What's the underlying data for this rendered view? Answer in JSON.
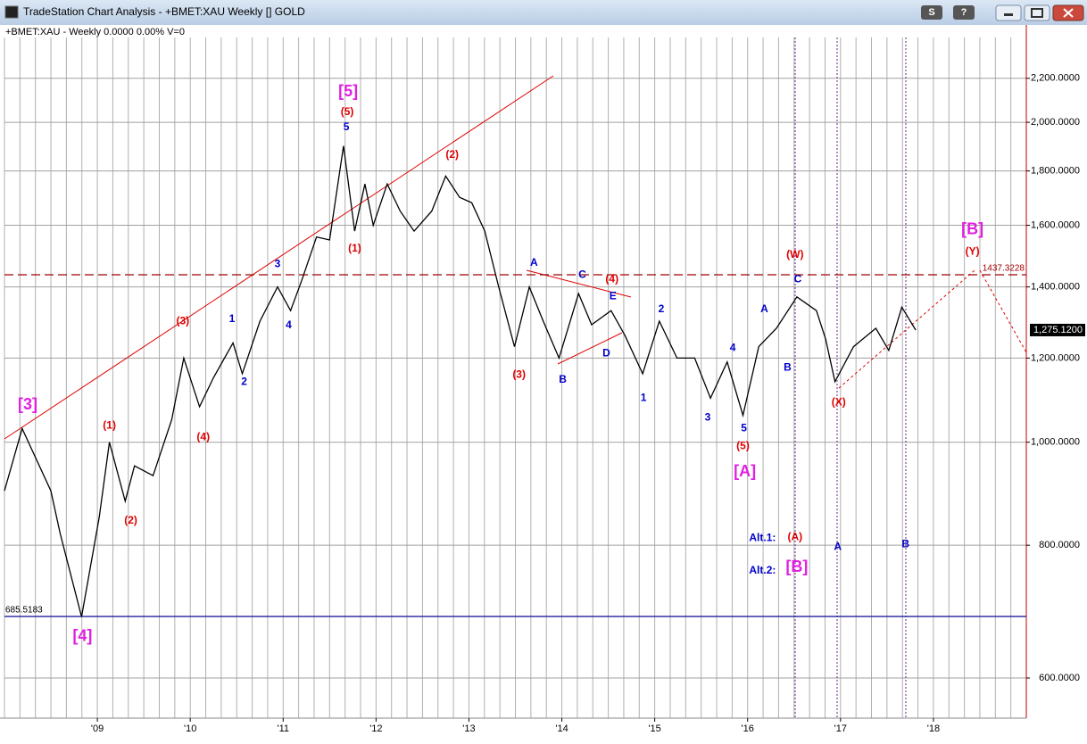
{
  "window": {
    "title": "TradeStation Chart Analysis - +BMET:XAU Weekly [] GOLD",
    "controls": [
      "S",
      "?"
    ]
  },
  "chart_data": {
    "type": "line",
    "header": "+BMET:XAU - Weekly  0.0000  0.00%  V=0",
    "log_scale": true,
    "grid": true,
    "xlim": [
      2008,
      2019
    ],
    "ylim": [
      550,
      2460
    ],
    "xticks": [
      {
        "value": 2009,
        "label": "'09"
      },
      {
        "value": 2010,
        "label": "'10"
      },
      {
        "value": 2011,
        "label": "'11"
      },
      {
        "value": 2012,
        "label": "'12"
      },
      {
        "value": 2013,
        "label": "'13"
      },
      {
        "value": 2014,
        "label": "'14"
      },
      {
        "value": 2015,
        "label": "'15"
      },
      {
        "value": 2016,
        "label": "'16"
      },
      {
        "value": 2017,
        "label": "'17"
      },
      {
        "value": 2018,
        "label": "'18"
      }
    ],
    "yticks": [
      {
        "value": 600,
        "label": "600.0000"
      },
      {
        "value": 800,
        "label": "800.0000"
      },
      {
        "value": 1000,
        "label": "1,000.0000"
      },
      {
        "value": 1200,
        "label": "1,200.0000"
      },
      {
        "value": 1400,
        "label": "1,400.0000"
      },
      {
        "value": 1600,
        "label": "1,600.0000"
      },
      {
        "value": 1800,
        "label": "1,800.0000"
      },
      {
        "value": 2000,
        "label": "2,000.0000"
      },
      {
        "value": 2200,
        "label": "2,200.0000"
      }
    ],
    "series": [
      {
        "color": "#000000",
        "x": [
          2008.0,
          2008.19,
          2008.5,
          2008.6,
          2008.83,
          2009.02,
          2009.13,
          2009.3,
          2009.4,
          2009.6,
          2009.8,
          2009.93,
          2010.1,
          2010.25,
          2010.46,
          2010.56,
          2010.75,
          2010.94,
          2011.08,
          2011.2,
          2011.36,
          2011.5,
          2011.65,
          2011.77,
          2011.88,
          2011.97,
          2012.12,
          2012.26,
          2012.41,
          2012.6,
          2012.75,
          2012.9,
          2013.03,
          2013.17,
          2013.32,
          2013.49,
          2013.65,
          2013.8,
          2013.97,
          2014.18,
          2014.32,
          2014.53,
          2014.68,
          2014.87,
          2015.05,
          2015.24,
          2015.43,
          2015.6,
          2015.78,
          2015.95,
          2016.12,
          2016.31,
          2016.53,
          2016.74,
          2016.84,
          2016.94,
          2017.14,
          2017.38,
          2017.52,
          2017.66,
          2017.81
        ],
        "values": [
          900,
          1030,
          900,
          820,
          685,
          850,
          1000,
          880,
          950,
          930,
          1050,
          1200,
          1080,
          1150,
          1240,
          1160,
          1300,
          1400,
          1330,
          1420,
          1560,
          1550,
          1900,
          1580,
          1750,
          1600,
          1750,
          1650,
          1580,
          1650,
          1780,
          1700,
          1680,
          1580,
          1400,
          1230,
          1400,
          1300,
          1200,
          1380,
          1290,
          1330,
          1260,
          1160,
          1300,
          1200,
          1200,
          1100,
          1190,
          1060,
          1230,
          1280,
          1370,
          1330,
          1250,
          1140,
          1230,
          1280,
          1220,
          1340,
          1275
        ]
      }
    ],
    "levels": [
      {
        "value": 1437.3228,
        "label": "1437.3228",
        "color": "#a00000"
      },
      {
        "value": 685.5183,
        "label": "685.5183",
        "color": "#2020a0"
      }
    ],
    "last_price": {
      "value": 1275.12,
      "label": "1,275.1200"
    },
    "annotations": [
      {
        "text": "[3]",
        "x": 2008.25,
        "y": 1083,
        "color": "#e020e0",
        "size": "big"
      },
      {
        "text": "[4]",
        "x": 2008.84,
        "y": 656,
        "color": "#e020e0",
        "size": "big"
      },
      {
        "text": "[5]",
        "x": 2011.7,
        "y": 2136,
        "color": "#e020e0",
        "size": "big"
      },
      {
        "text": "(5)",
        "x": 2011.69,
        "y": 2045,
        "color": "#e00000"
      },
      {
        "text": "5",
        "x": 2011.68,
        "y": 1978,
        "color": "#0000cc"
      },
      {
        "text": "(1)",
        "x": 2011.77,
        "y": 1521,
        "color": "#e00000"
      },
      {
        "text": "(2)",
        "x": 2012.82,
        "y": 1863,
        "color": "#e00000"
      },
      {
        "text": "(3)",
        "x": 2009.92,
        "y": 1299,
        "color": "#e00000"
      },
      {
        "text": "(4)",
        "x": 2010.14,
        "y": 1010,
        "color": "#e00000"
      },
      {
        "text": "(1)",
        "x": 2009.13,
        "y": 1036,
        "color": "#e00000"
      },
      {
        "text": "(2)",
        "x": 2009.36,
        "y": 843,
        "color": "#e00000"
      },
      {
        "text": "1",
        "x": 2010.45,
        "y": 1306,
        "color": "#0000cc"
      },
      {
        "text": "2",
        "x": 2010.58,
        "y": 1139,
        "color": "#0000cc"
      },
      {
        "text": "3",
        "x": 2010.94,
        "y": 1470,
        "color": "#0000cc"
      },
      {
        "text": "4",
        "x": 2011.06,
        "y": 1288,
        "color": "#0000cc"
      },
      {
        "text": "(3)",
        "x": 2013.54,
        "y": 1157,
        "color": "#e00000"
      },
      {
        "text": "A",
        "x": 2013.7,
        "y": 1475,
        "color": "#0000cc"
      },
      {
        "text": "B",
        "x": 2014.01,
        "y": 1145,
        "color": "#0000cc"
      },
      {
        "text": "C",
        "x": 2014.22,
        "y": 1436,
        "color": "#0000cc"
      },
      {
        "text": "(4)",
        "x": 2014.54,
        "y": 1422,
        "color": "#e00000"
      },
      {
        "text": "E",
        "x": 2014.55,
        "y": 1371,
        "color": "#0000cc"
      },
      {
        "text": "D",
        "x": 2014.48,
        "y": 1212,
        "color": "#0000cc"
      },
      {
        "text": "2",
        "x": 2015.07,
        "y": 1334,
        "color": "#0000cc"
      },
      {
        "text": "1",
        "x": 2014.88,
        "y": 1100,
        "color": "#0000cc"
      },
      {
        "text": "3",
        "x": 2015.57,
        "y": 1054,
        "color": "#0000cc"
      },
      {
        "text": "4",
        "x": 2015.84,
        "y": 1226,
        "color": "#0000cc"
      },
      {
        "text": "5",
        "x": 2015.96,
        "y": 1030,
        "color": "#0000cc"
      },
      {
        "text": "(5)",
        "x": 2015.95,
        "y": 991,
        "color": "#e00000"
      },
      {
        "text": "[A]",
        "x": 2015.97,
        "y": 937,
        "color": "#e020e0",
        "size": "big"
      },
      {
        "text": "A",
        "x": 2016.18,
        "y": 1334,
        "color": "#0000cc"
      },
      {
        "text": "B",
        "x": 2016.43,
        "y": 1175,
        "color": "#0000cc"
      },
      {
        "text": "C",
        "x": 2016.54,
        "y": 1422,
        "color": "#0000cc"
      },
      {
        "text": "(W)",
        "x": 2016.51,
        "y": 1501,
        "color": "#e00000"
      },
      {
        "text": "(X)",
        "x": 2016.98,
        "y": 1090,
        "color": "#e00000"
      },
      {
        "text": "[B]",
        "x": 2018.42,
        "y": 1584,
        "color": "#e020e0",
        "size": "big"
      },
      {
        "text": "(Y)",
        "x": 2018.42,
        "y": 1510,
        "color": "#e00000"
      },
      {
        "text": "Alt.1:",
        "x": 2016.16,
        "y": 812,
        "color": "#0000cc"
      },
      {
        "text": "(A)",
        "x": 2016.51,
        "y": 814,
        "color": "#e00000"
      },
      {
        "text": "Alt.2:",
        "x": 2016.16,
        "y": 757,
        "color": "#0000cc"
      },
      {
        "text": "[B]",
        "x": 2016.53,
        "y": 762,
        "color": "#e020e0",
        "size": "big"
      },
      {
        "text": "A",
        "x": 2016.97,
        "y": 797,
        "color": "#0000cc"
      },
      {
        "text": "B",
        "x": 2017.7,
        "y": 801,
        "color": "#0000cc"
      }
    ]
  }
}
